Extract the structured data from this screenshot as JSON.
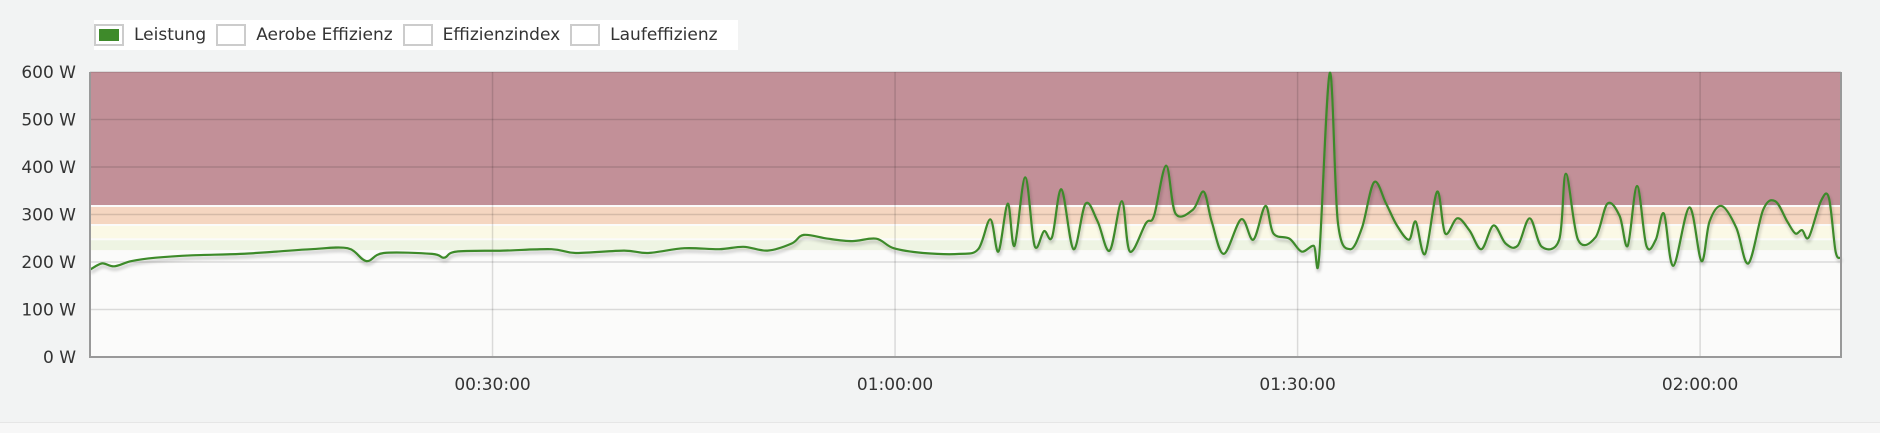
{
  "legend": [
    {
      "label": "Leistung",
      "active": true,
      "color": "#3e8a2a"
    },
    {
      "label": "Aerobe Effizienz",
      "active": false
    },
    {
      "label": "Effizienzindex",
      "active": false
    },
    {
      "label": "Laufeffizienz",
      "active": false
    }
  ],
  "chart_data": {
    "type": "line",
    "xlim": [
      0,
      130.5
    ],
    "ylim": [
      0,
      600
    ],
    "x_unit": "minutes",
    "y_ticks": [
      {
        "value": 0,
        "label": "0 W"
      },
      {
        "value": 100,
        "label": "100 W"
      },
      {
        "value": 200,
        "label": "200 W"
      },
      {
        "value": 300,
        "label": "300 W"
      },
      {
        "value": 400,
        "label": "400 W"
      },
      {
        "value": 500,
        "label": "500 W"
      },
      {
        "value": 600,
        "label": "600 W"
      }
    ],
    "x_ticks": [
      {
        "value": 30,
        "label": "00:30:00"
      },
      {
        "value": 60,
        "label": "01:00:00"
      },
      {
        "value": 90,
        "label": "01:30:00"
      },
      {
        "value": 120,
        "label": "02:00:00"
      }
    ],
    "grid": true,
    "zones": [
      {
        "from": 320,
        "to": 600,
        "color": "#c29098"
      },
      {
        "from": 280,
        "to": 320,
        "color": "#f5d6c1"
      },
      {
        "from": 250,
        "to": 280,
        "color": "#fbf9e6"
      },
      {
        "from": 225,
        "to": 250,
        "color": "#eef4e3"
      }
    ],
    "series": [
      {
        "name": "Leistung",
        "color": "#3e8a2a",
        "x": [
          0,
          0.9,
          1.8,
          3.1,
          4.9,
          7.6,
          11.2,
          13.9,
          16.5,
          19.2,
          20.6,
          21.9,
          25.5,
          26.4,
          27.3,
          30.8,
          34.4,
          36.2,
          39.8,
          41.6,
          44.3,
          46.9,
          48.7,
          50.5,
          52.3,
          53.2,
          55,
          56.8,
          58.6,
          59.9,
          62.1,
          64.8,
          66.2,
          67.1,
          67.7,
          68.4,
          68.9,
          69.7,
          70.4,
          71.1,
          71.7,
          72.4,
          73.3,
          74.2,
          75.1,
          76,
          76.9,
          77.5,
          78.7,
          79.3,
          80.2,
          80.9,
          82.2,
          83,
          83.6,
          84.5,
          85.8,
          86.7,
          87.6,
          88.2,
          89.4,
          90.3,
          91.2,
          91.6,
          92.4,
          93,
          93.9,
          94.8,
          95.7,
          96.6,
          97.4,
          98.3,
          98.8,
          99.5,
          100.4,
          101,
          101.9,
          102.8,
          103.7,
          104.6,
          105.5,
          106.4,
          107.3,
          108.2,
          109.5,
          110,
          110.9,
          112.2,
          113.1,
          114,
          114.6,
          115.3,
          116,
          116.7,
          117.3,
          118,
          119.2,
          120.1,
          120.7,
          121.6,
          122.7,
          123.6,
          124.7,
          125.6,
          126.5,
          127.1,
          127.6,
          128.1,
          129,
          129.6,
          130.1,
          130.5
        ],
        "y": [
          184,
          197,
          191,
          202,
          209,
          214,
          217,
          222,
          227,
          229,
          202,
          219,
          217,
          209,
          222,
          224,
          227,
          219,
          224,
          219,
          229,
          227,
          232,
          224,
          239,
          257,
          249,
          244,
          249,
          229,
          219,
          217,
          227,
          290,
          222,
          323,
          234,
          378,
          234,
          265,
          252,
          353,
          227,
          323,
          285,
          224,
          328,
          222,
          282,
          297,
          403,
          302,
          310,
          348,
          285,
          217,
          290,
          247,
          318,
          260,
          249,
          222,
          234,
          209,
          598,
          285,
          227,
          272,
          368,
          323,
          277,
          247,
          285,
          217,
          348,
          260,
          292,
          267,
          227,
          277,
          239,
          234,
          292,
          232,
          247,
          386,
          247,
          252,
          323,
          297,
          234,
          360,
          234,
          247,
          302,
          192,
          315,
          202,
          285,
          318,
          272,
          197,
          310,
          328,
          285,
          260,
          267,
          252,
          328,
          335,
          222,
          209
        ]
      }
    ]
  }
}
